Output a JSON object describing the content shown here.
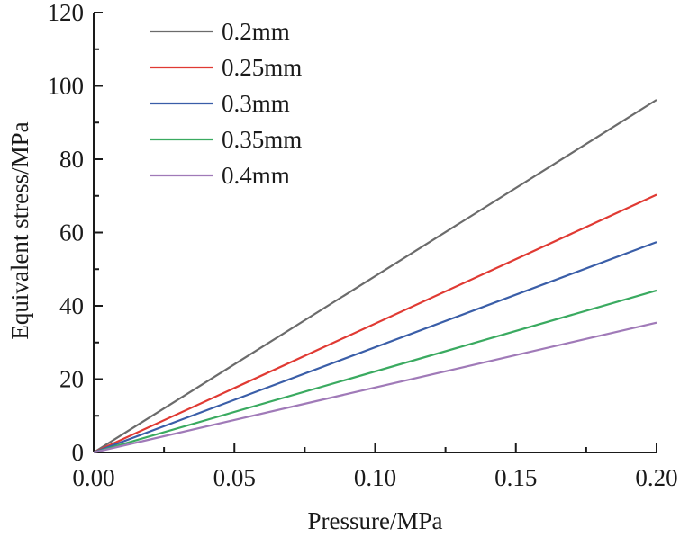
{
  "chart_data": {
    "type": "line",
    "title": "",
    "xlabel": "Pressure/MPa",
    "ylabel": "Equivalent stress/MPa",
    "xlim": [
      0,
      0.2
    ],
    "ylim": [
      0,
      120
    ],
    "xticks": [
      0.0,
      0.05,
      0.1,
      0.15,
      0.2
    ],
    "xtick_labels": [
      "0.00",
      "0.05",
      "0.10",
      "0.15",
      "0.20"
    ],
    "yticks": [
      0,
      20,
      40,
      60,
      80,
      100,
      120
    ],
    "ytick_labels": [
      "0",
      "20",
      "40",
      "60",
      "80",
      "100",
      "120"
    ],
    "grid": false,
    "legend_position": "top-left",
    "series": [
      {
        "name": "0.2mm",
        "color": "#6b6b6b",
        "x": [
          0,
          0.2
        ],
        "y": [
          0,
          96.2
        ]
      },
      {
        "name": "0.25mm",
        "color": "#e03a33",
        "x": [
          0,
          0.2
        ],
        "y": [
          0,
          70.3
        ]
      },
      {
        "name": "0.3mm",
        "color": "#3a5ea8",
        "x": [
          0,
          0.2
        ],
        "y": [
          0,
          57.4
        ]
      },
      {
        "name": "0.35mm",
        "color": "#3aaa60",
        "x": [
          0,
          0.2
        ],
        "y": [
          0,
          44.2
        ]
      },
      {
        "name": "0.4mm",
        "color": "#a07ab8",
        "x": [
          0,
          0.2
        ],
        "y": [
          0,
          35.4
        ]
      }
    ]
  }
}
